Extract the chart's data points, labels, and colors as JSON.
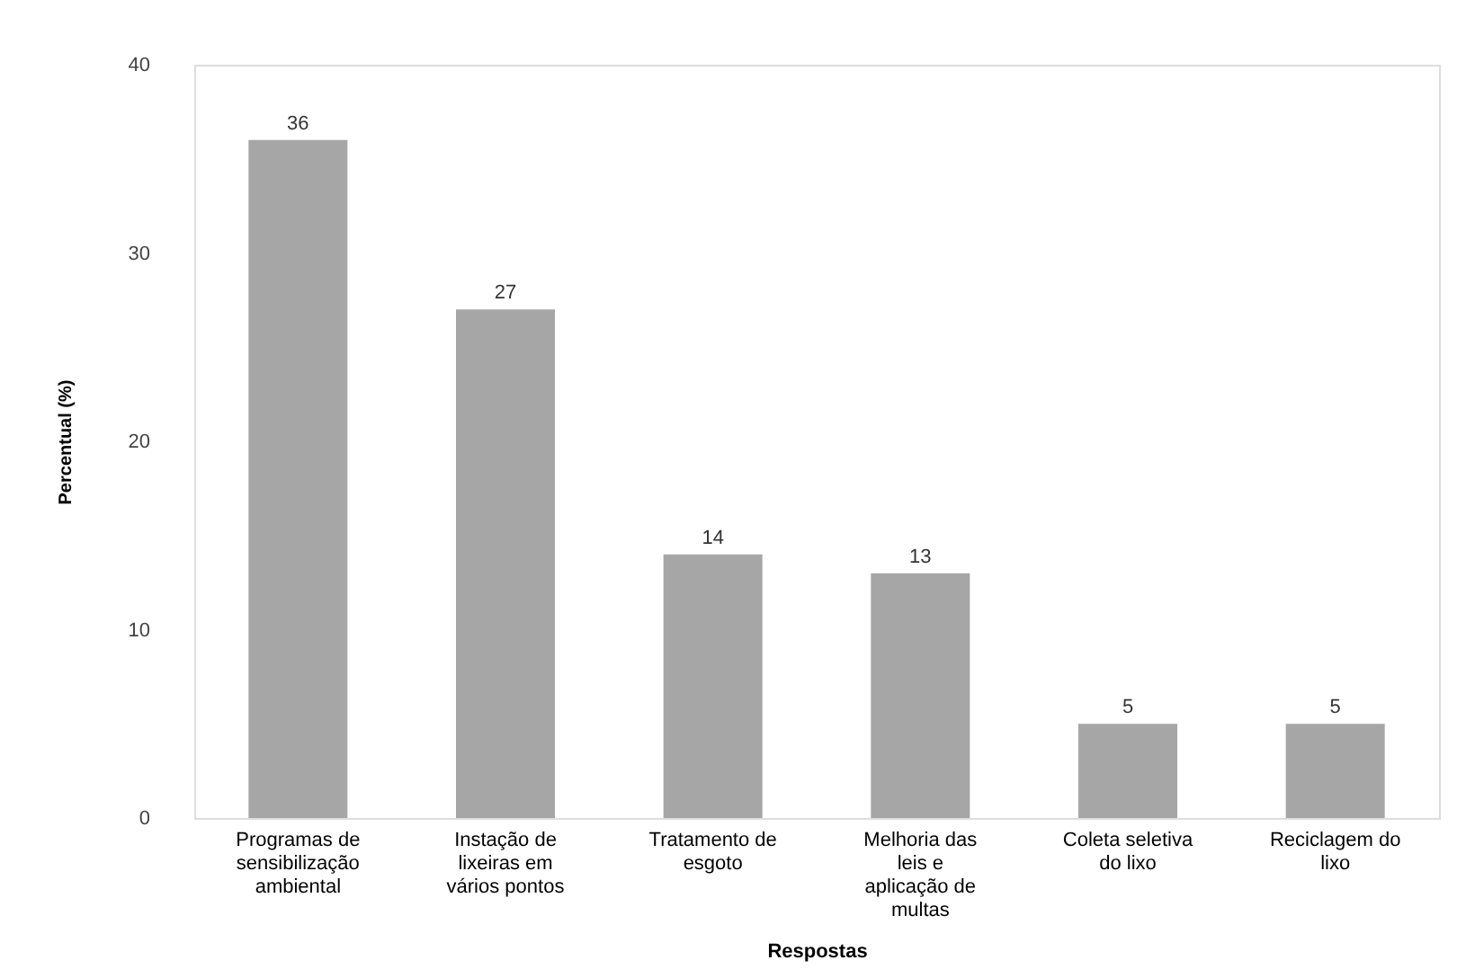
{
  "chart_data": {
    "type": "bar",
    "xlabel": "Respostas",
    "ylabel": "Percentual (%)",
    "categories": [
      "Programas de sensibilização ambiental",
      "Instação de lixeiras em vários pontos",
      "Tratamento de esgoto",
      "Melhoria das leis e aplicação de multas",
      "Coleta seletiva do lixo",
      "Reciclagem do lixo"
    ],
    "values": [
      36,
      27,
      14,
      13,
      5,
      5
    ],
    "color": "#a6a6a6",
    "ylim": [
      0,
      40
    ],
    "yticks": [
      0,
      10,
      20,
      30,
      40
    ],
    "grid": false,
    "data_labels": true
  }
}
